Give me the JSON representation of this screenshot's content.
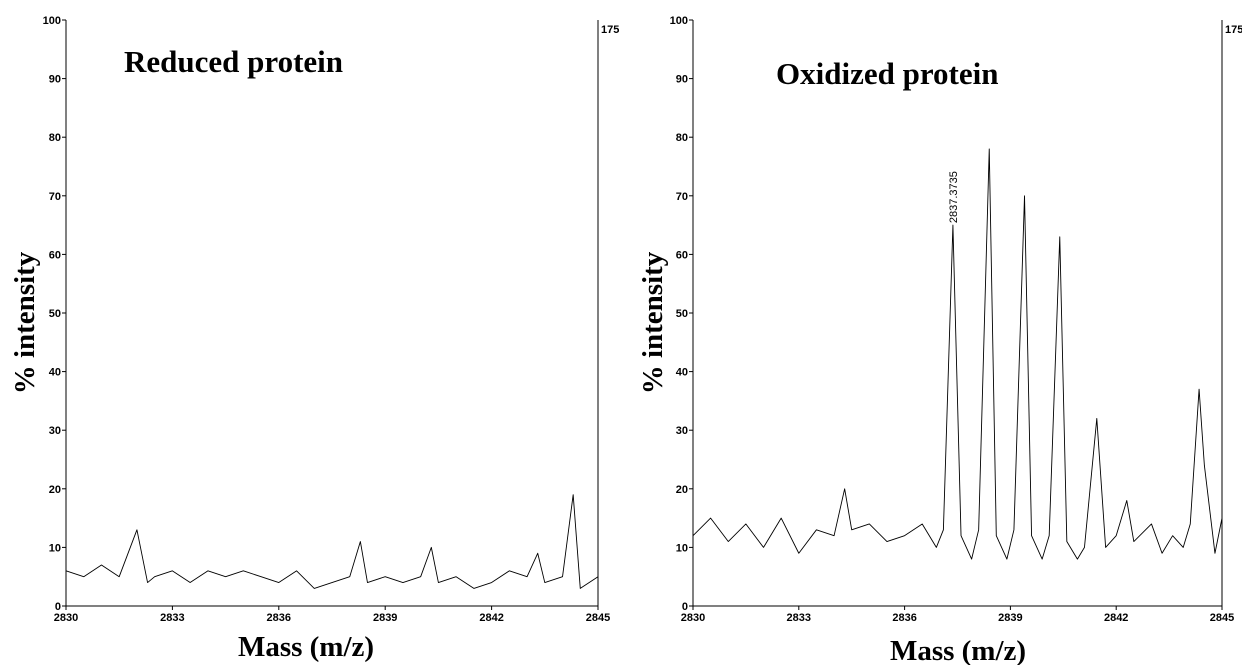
{
  "chart_data": [
    {
      "type": "line",
      "title": "Reduced protein",
      "xlabel": "Mass (m/z)",
      "ylabel": "% intensity",
      "right_label": "175",
      "xlim": [
        2830,
        2845
      ],
      "ylim": [
        0,
        100
      ],
      "x_ticks": [
        "2830",
        "2833",
        "2836",
        "2839",
        "2842",
        "2845"
      ],
      "y_ticks": [
        "0",
        "10",
        "20",
        "30",
        "40",
        "50",
        "60",
        "70",
        "80",
        "90",
        "100"
      ],
      "series": [
        {
          "x": [
            2830.0,
            2830.5,
            2831.0,
            2831.5,
            2832.0,
            2832.3,
            2832.5,
            2833.0,
            2833.5,
            2834.0,
            2834.5,
            2835.0,
            2835.5,
            2836.0,
            2836.5,
            2837.0,
            2837.5,
            2838.0,
            2838.3,
            2838.5,
            2839.0,
            2839.5,
            2840.0,
            2840.3,
            2840.5,
            2841.0,
            2841.5,
            2842.0,
            2842.5,
            2843.0,
            2843.3,
            2843.5,
            2844.0,
            2844.3,
            2844.5,
            2845.0
          ],
          "y": [
            6,
            5,
            7,
            5,
            13,
            4,
            5,
            6,
            4,
            6,
            5,
            6,
            5,
            4,
            6,
            3,
            4,
            5,
            11,
            4,
            5,
            4,
            5,
            10,
            4,
            5,
            3,
            4,
            6,
            5,
            9,
            4,
            5,
            19,
            3,
            5
          ]
        }
      ]
    },
    {
      "type": "line",
      "title": "Oxidized protein",
      "xlabel": "Mass (m/z)",
      "ylabel": "% intensity",
      "right_label": "175",
      "xlim": [
        2830,
        2845
      ],
      "ylim": [
        0,
        100
      ],
      "x_ticks": [
        "2830",
        "2833",
        "2836",
        "2839",
        "2842",
        "2845"
      ],
      "y_ticks": [
        "0",
        "10",
        "20",
        "30",
        "40",
        "50",
        "60",
        "70",
        "80",
        "90",
        "100"
      ],
      "annotations": [
        {
          "text": "2837.3735",
          "x": 2837.37,
          "y": 65
        }
      ],
      "series": [
        {
          "x": [
            2830.0,
            2830.5,
            2831.0,
            2831.5,
            2832.0,
            2832.5,
            2833.0,
            2833.5,
            2834.0,
            2834.3,
            2834.5,
            2835.0,
            2835.5,
            2836.0,
            2836.5,
            2836.9,
            2837.1,
            2837.37,
            2837.6,
            2837.9,
            2838.1,
            2838.4,
            2838.6,
            2838.9,
            2839.1,
            2839.4,
            2839.6,
            2839.9,
            2840.1,
            2840.4,
            2840.6,
            2840.9,
            2841.1,
            2841.45,
            2841.7,
            2842.0,
            2842.3,
            2842.5,
            2843.0,
            2843.3,
            2843.6,
            2843.9,
            2844.1,
            2844.35,
            2844.5,
            2844.8,
            2845.0
          ],
          "y": [
            12,
            15,
            11,
            14,
            10,
            15,
            9,
            13,
            12,
            20,
            13,
            14,
            11,
            12,
            14,
            10,
            13,
            65,
            12,
            8,
            13,
            78,
            12,
            8,
            13,
            70,
            12,
            8,
            12,
            63,
            11,
            8,
            10,
            32,
            10,
            12,
            18,
            11,
            14,
            9,
            12,
            10,
            14,
            37,
            24,
            9,
            15
          ]
        }
      ]
    }
  ]
}
